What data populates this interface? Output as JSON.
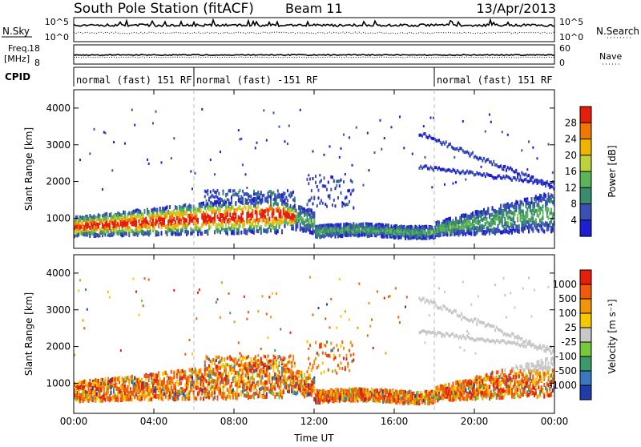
{
  "header": {
    "station": "South Pole Station (fitACF)",
    "beam": "Beam 11",
    "date": "13/Apr/2013"
  },
  "summary": {
    "nsky_label": "N.Sky",
    "nsky_ticks": [
      "10^5",
      "10^0"
    ],
    "nsearch_label": "N.Search",
    "nsearch_ticks": [
      "10^5",
      "10^0"
    ],
    "freq_label": "Freq.",
    "freq_unit": "[MHz]",
    "freq_ticks": [
      "18",
      "8"
    ],
    "nave_label": "Nave",
    "nave_ticks": [
      "60",
      "0"
    ],
    "cpid_label": "CPID",
    "cpid_segments": [
      {
        "label": "normal (fast) 151 RF",
        "start_hour": 0
      },
      {
        "label": "normal (fast) -151 RF",
        "start_hour": 6
      },
      {
        "label": "normal (fast) 151 RF",
        "start_hour": 18
      }
    ]
  },
  "chart_data": [
    {
      "type": "heatmap",
      "title": "",
      "ylabel": "Slant Range [km]",
      "xlabel": "",
      "ylim": [
        180,
        4500
      ],
      "xlim": [
        0,
        24
      ],
      "y_ticks": [
        "1000",
        "2000",
        "3000",
        "4000"
      ],
      "x_ticks": [
        "00:00",
        "04:00",
        "08:00",
        "12:00",
        "16:00",
        "20:00",
        "00:00"
      ],
      "colorbar": {
        "label": "Power [dB]",
        "ticks": [
          "28",
          "24",
          "20",
          "16",
          "12",
          "8",
          "4"
        ],
        "range": [
          0,
          32
        ],
        "colors": [
          "#1e1ed2",
          "#3b50b4",
          "#3a8c6e",
          "#5ab45a",
          "#bed23c",
          "#f0b400",
          "#f07800",
          "#e61e0a"
        ]
      }
    },
    {
      "type": "heatmap",
      "title": "",
      "ylabel": "Slant Range [km]",
      "xlabel": "Time UT",
      "ylim": [
        180,
        4500
      ],
      "xlim": [
        0,
        24
      ],
      "y_ticks": [
        "1000",
        "2000",
        "3000",
        "4000"
      ],
      "x_ticks": [
        "00:00",
        "04:00",
        "08:00",
        "12:00",
        "16:00",
        "20:00",
        "00:00"
      ],
      "colorbar": {
        "label": "Velocity [m s⁻¹]",
        "ticks": [
          "1000",
          "500",
          "100",
          "25",
          "-25",
          "-100",
          "-500",
          "-1000"
        ],
        "colors": [
          "#1e3caa",
          "#3c78be",
          "#3a9a6a",
          "#78c83c",
          "#c8c8c8",
          "#f5c800",
          "#f0960a",
          "#f05a0a",
          "#e61e0a"
        ]
      }
    }
  ]
}
